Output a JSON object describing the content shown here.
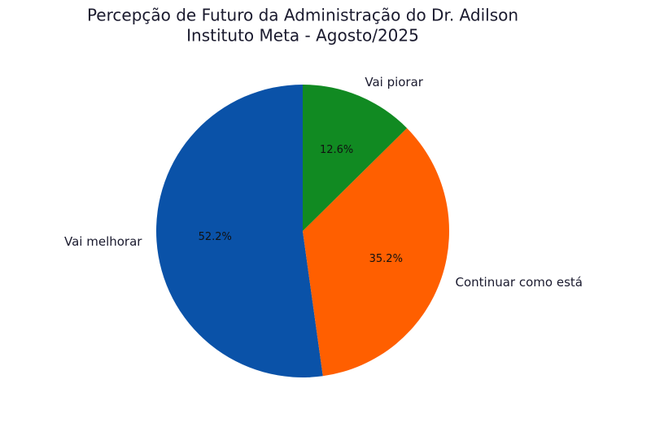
{
  "chart_data": {
    "type": "pie",
    "title": "Percepção de Futuro da Administração do Dr. Adilson",
    "subtitle": "Instituto Meta - Agosto/2025",
    "categories": [
      "Vai melhorar",
      "Continuar como está",
      "Vai piorar"
    ],
    "values": [
      52.2,
      35.2,
      12.6
    ],
    "value_labels": [
      "52.2%",
      "35.2%",
      "12.6%"
    ],
    "colors": [
      "#0a52a8",
      "#ff5f00",
      "#118a22"
    ]
  }
}
